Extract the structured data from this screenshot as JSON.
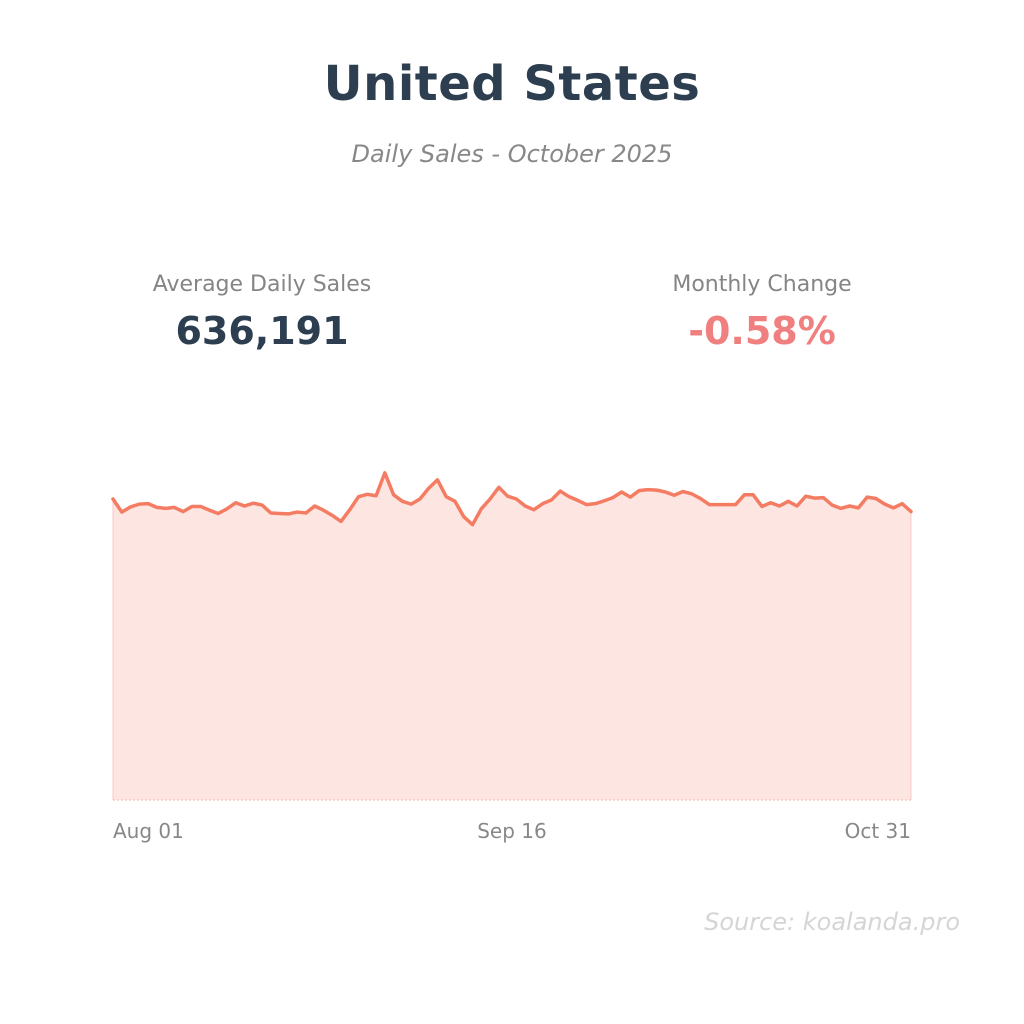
{
  "header": {
    "title": "United States",
    "subtitle": "Daily Sales - October 2025"
  },
  "stats": {
    "avg_label": "Average Daily Sales",
    "avg_value": "636,191",
    "change_label": "Monthly Change",
    "change_value": "-0.58%"
  },
  "footer": {
    "source": "Source: koalanda.pro"
  },
  "colors": {
    "line": "#f47c63",
    "fill": "#fde6e2",
    "title": "#2c3e50",
    "negative": "#f08080"
  },
  "chart_data": {
    "type": "area",
    "title": "United States",
    "subtitle": "Daily Sales - October 2025",
    "xlabel": "",
    "ylabel": "",
    "x_ticks": [
      "Aug 01",
      "Sep 16",
      "Oct 31"
    ],
    "x_start": "Aug 01",
    "x_end": "Oct 31",
    "ylim": [
      0,
      900000
    ],
    "grid": false,
    "series": [
      {
        "values": [
          645000,
          617000,
          628000,
          634000,
          635000,
          627000,
          625000,
          627000,
          618000,
          629000,
          629000,
          621000,
          614000,
          624000,
          637000,
          630000,
          636000,
          632000,
          615000,
          614000,
          613000,
          617000,
          615000,
          630000,
          621000,
          610000,
          597000,
          622000,
          650000,
          655000,
          652000,
          701000,
          654000,
          640000,
          634000,
          645000,
          668000,
          686000,
          650000,
          640000,
          607000,
          590000,
          624000,
          645000,
          670000,
          651000,
          645000,
          630000,
          622000,
          635000,
          643000,
          662000,
          650000,
          642000,
          633000,
          635000,
          641000,
          648000,
          660000,
          649000,
          663000,
          665000,
          664000,
          660000,
          653000,
          661000,
          656000,
          646000,
          633000,
          633000,
          633000,
          633000,
          654000,
          654000,
          629000,
          637000,
          630000,
          640000,
          630000,
          651000,
          647000,
          648000,
          632000,
          625000,
          630000,
          626000,
          649000,
          646000,
          634000,
          626000,
          635000,
          618000
        ]
      }
    ]
  }
}
